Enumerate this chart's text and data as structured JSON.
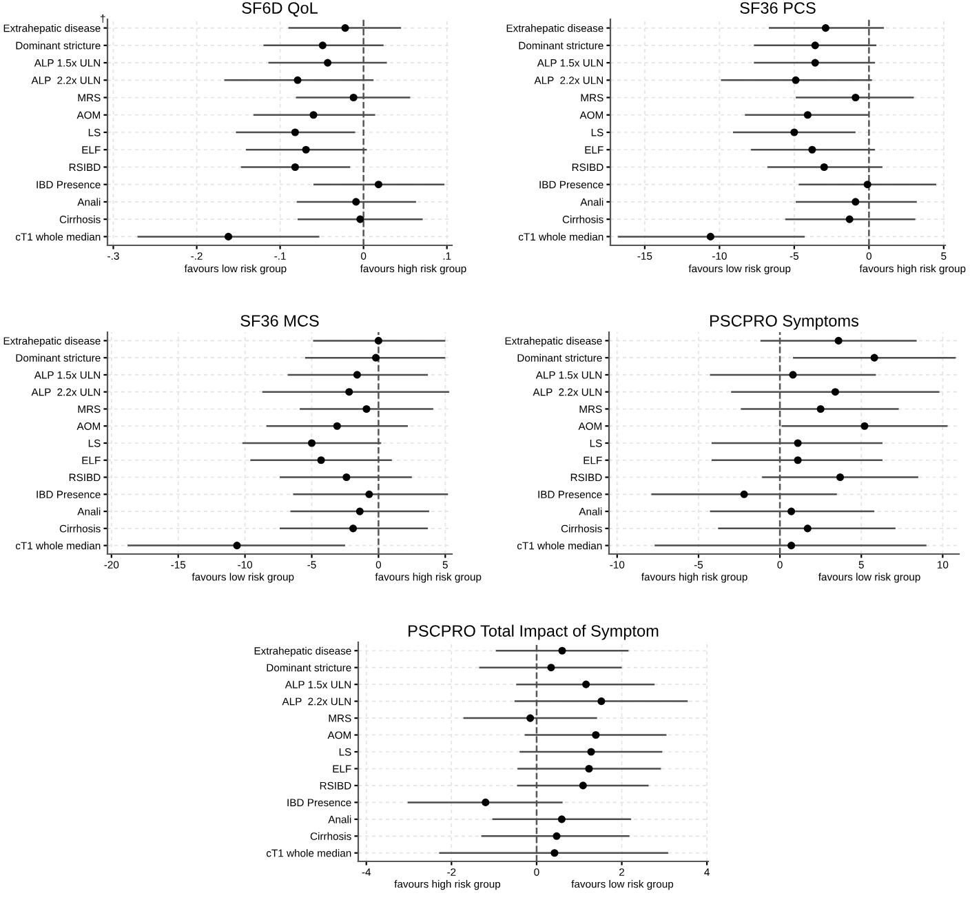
{
  "chart_data": [
    {
      "type": "scatter",
      "orientation": "horizontal",
      "title": "SF6D QoL",
      "categories": [
        "Extrahepatic disease",
        "Dominant stricture",
        "ALP 1.5x ULN",
        "ALP  2.2x ULN",
        "MRS",
        "AOM",
        "LS",
        "ELF",
        "RSIBD",
        "IBD Presence",
        "Anali",
        "Cirrhosis",
        "cT1 whole median"
      ],
      "values": [
        -0.022,
        -0.049,
        -0.043,
        -0.079,
        -0.012,
        -0.06,
        -0.082,
        -0.069,
        -0.082,
        0.018,
        -0.009,
        -0.004,
        -0.162
      ],
      "errors": [
        [
          -0.09,
          0.045
        ],
        [
          -0.12,
          0.024
        ],
        [
          -0.114,
          0.028
        ],
        [
          -0.167,
          0.012
        ],
        [
          -0.081,
          0.056
        ],
        [
          -0.132,
          0.014
        ],
        [
          -0.153,
          -0.01
        ],
        [
          -0.141,
          0.004
        ],
        [
          -0.147,
          -0.016
        ],
        [
          -0.06,
          0.097
        ],
        [
          -0.08,
          0.063
        ],
        [
          -0.079,
          0.071
        ],
        [
          -0.271,
          -0.053
        ]
      ],
      "color": "#000000",
      "marker": "circle",
      "xlim": [
        -0.307,
        0.106
      ],
      "xticks": [
        {
          "value": -0.3,
          "label": "-.3"
        },
        {
          "value": -0.2,
          "label": "-.2"
        },
        {
          "value": -0.1,
          "label": "-.1"
        },
        0,
        {
          "value": 0.1,
          "label": ".1"
        }
      ],
      "ref_lines": [
        {
          "axis": "x",
          "value": 0,
          "line_style": "dashed"
        }
      ],
      "grid": true,
      "annotations": [
        "favours low risk group",
        "favours high risk group",
        "†"
      ]
    },
    {
      "type": "scatter",
      "orientation": "horizontal",
      "title": "SF36 PCS",
      "categories": [
        "Extrahepatic disease",
        "Dominant stricture",
        "ALP 1.5x ULN",
        "ALP  2.2x ULN",
        "MRS",
        "AOM",
        "LS",
        "ELF",
        "RSIBD",
        "IBD Presence",
        "Anali",
        "Cirrhosis",
        "cT1 whole median"
      ],
      "values": [
        -2.9,
        -3.6,
        -3.6,
        -4.9,
        -0.9,
        -4.1,
        -5.0,
        -3.8,
        -3.0,
        -0.1,
        -0.9,
        -1.3,
        -10.6
      ],
      "errors": [
        [
          -6.7,
          1.0
        ],
        [
          -7.7,
          0.5
        ],
        [
          -7.7,
          0.4
        ],
        [
          -9.9,
          0.2
        ],
        [
          -4.9,
          3.0
        ],
        [
          -8.3,
          0.0
        ],
        [
          -9.1,
          -0.9
        ],
        [
          -7.9,
          0.4
        ],
        [
          -6.8,
          0.9
        ],
        [
          -4.7,
          4.5
        ],
        [
          -4.9,
          3.2
        ],
        [
          -5.6,
          3.1
        ],
        [
          -16.8,
          -4.3
        ]
      ],
      "color": "#000000",
      "marker": "circle",
      "xlim": [
        -17.3,
        5.1
      ],
      "xticks": [
        -15,
        -10,
        -5,
        0,
        5
      ],
      "ref_lines": [
        {
          "axis": "x",
          "value": 0,
          "line_style": "dashed"
        }
      ],
      "grid": true,
      "annotations": [
        "favours low risk group",
        "favours high risk group"
      ]
    },
    {
      "type": "scatter",
      "orientation": "horizontal",
      "title": "SF36 MCS",
      "categories": [
        "Extrahepatic disease",
        "Dominant stricture",
        "ALP 1.5x ULN",
        "ALP  2.2x ULN",
        "MRS",
        "AOM",
        "LS",
        "ELF",
        "RSIBD",
        "IBD Presence",
        "Anali",
        "Cirrhosis",
        "cT1 whole median"
      ],
      "values": [
        0.0,
        -0.2,
        -1.6,
        -2.2,
        -0.9,
        -3.1,
        -5.0,
        -4.3,
        -2.4,
        -0.7,
        -1.4,
        -1.9,
        -10.6
      ],
      "errors": [
        [
          -4.9,
          5.0
        ],
        [
          -5.5,
          5.0
        ],
        [
          -6.8,
          3.7
        ],
        [
          -8.7,
          5.3
        ],
        [
          -5.9,
          4.1
        ],
        [
          -8.4,
          2.2
        ],
        [
          -10.2,
          0.2
        ],
        [
          -9.6,
          1.0
        ],
        [
          -7.4,
          2.5
        ],
        [
          -6.4,
          5.2
        ],
        [
          -6.6,
          3.8
        ],
        [
          -7.4,
          3.7
        ],
        [
          -18.8,
          -2.5
        ]
      ],
      "color": "#000000",
      "marker": "circle",
      "xlim": [
        -20.3,
        5.5
      ],
      "xticks": [
        -20,
        -15,
        -10,
        -5,
        0,
        5
      ],
      "ref_lines": [
        {
          "axis": "x",
          "value": 0,
          "line_style": "dashed"
        }
      ],
      "grid": true,
      "annotations": [
        "favours low risk group",
        "favours high risk group"
      ]
    },
    {
      "type": "scatter",
      "orientation": "horizontal",
      "title": "PSCPRO Symptoms",
      "categories": [
        "Extrahepatic disease",
        "Dominant stricture",
        "ALP 1.5x ULN",
        "ALP  2.2x ULN",
        "MRS",
        "AOM",
        "LS",
        "ELF",
        "RSIBD",
        "IBD Presence",
        "Anali",
        "Cirrhosis",
        "cT1 whole median"
      ],
      "values": [
        3.6,
        5.8,
        0.8,
        3.4,
        2.5,
        5.2,
        1.1,
        1.1,
        3.7,
        -2.2,
        0.7,
        1.7,
        0.7
      ],
      "errors": [
        [
          -1.2,
          8.4
        ],
        [
          0.8,
          10.8
        ],
        [
          -4.3,
          5.9
        ],
        [
          -3.0,
          9.8
        ],
        [
          -2.4,
          7.3
        ],
        [
          0.1,
          10.3
        ],
        [
          -4.2,
          6.3
        ],
        [
          -4.2,
          6.3
        ],
        [
          -1.1,
          8.5
        ],
        [
          -7.9,
          3.5
        ],
        [
          -4.3,
          5.8
        ],
        [
          -3.8,
          7.1
        ],
        [
          -7.7,
          9.0
        ]
      ],
      "color": "#000000",
      "marker": "circle",
      "xlim": [
        -10.5,
        11.0
      ],
      "xticks": [
        -10,
        -5,
        0,
        5,
        10
      ],
      "ref_lines": [
        {
          "axis": "x",
          "value": 0,
          "line_style": "dashed"
        }
      ],
      "grid": true,
      "annotations": [
        "favours high risk group",
        "favours low risk group"
      ]
    },
    {
      "type": "scatter",
      "orientation": "horizontal",
      "title": "PSCPRO Total Impact of Symptom",
      "categories": [
        "Extrahepatic disease",
        "Dominant stricture",
        "ALP 1.5x ULN",
        "ALP  2.2x ULN",
        "MRS",
        "AOM",
        "LS",
        "ELF",
        "RSIBD",
        "IBD Presence",
        "Anali",
        "Cirrhosis",
        "cT1 whole median"
      ],
      "values": [
        0.6,
        0.34,
        1.16,
        1.52,
        -0.15,
        1.39,
        1.28,
        1.23,
        1.09,
        -1.2,
        0.59,
        0.47,
        0.42
      ],
      "errors": [
        [
          -0.96,
          2.16
        ],
        [
          -1.35,
          2.0
        ],
        [
          -0.48,
          2.77
        ],
        [
          -0.52,
          3.55
        ],
        [
          -1.72,
          1.42
        ],
        [
          -0.28,
          3.05
        ],
        [
          -0.4,
          2.95
        ],
        [
          -0.45,
          2.92
        ],
        [
          -0.46,
          2.63
        ],
        [
          -3.03,
          0.61
        ],
        [
          -1.04,
          2.22
        ],
        [
          -1.3,
          2.18
        ],
        [
          -2.29,
          3.09
        ]
      ],
      "color": "#000000",
      "marker": "circle",
      "xlim": [
        -4.19,
        4.03
      ],
      "xticks": [
        -4,
        -2,
        0,
        2,
        4
      ],
      "ref_lines": [
        {
          "axis": "x",
          "value": 0,
          "line_style": "dashed"
        }
      ],
      "grid": true,
      "annotations": [
        "favours high risk group",
        "favours low risk group"
      ]
    }
  ]
}
